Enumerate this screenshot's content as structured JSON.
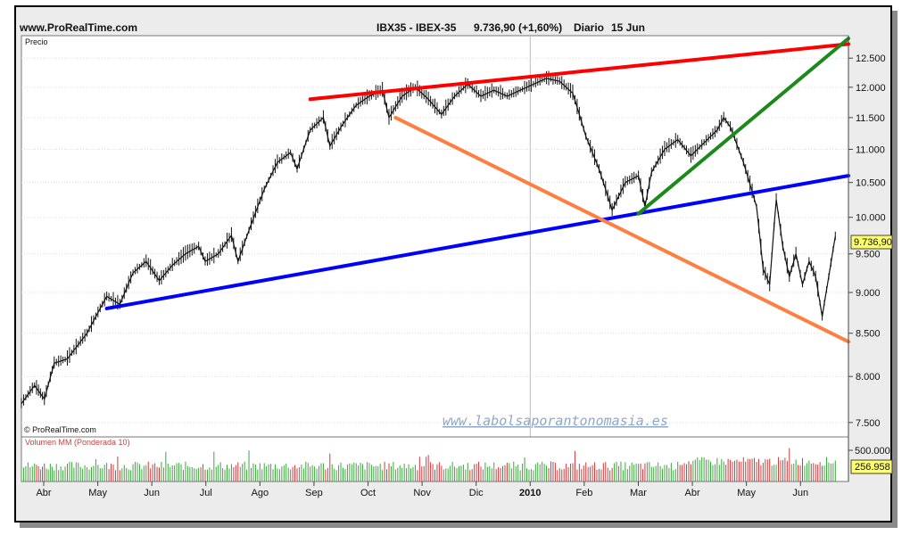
{
  "header": {
    "site": "www.ProRealTime.com",
    "symbol": "IBX35 - IBEX-35",
    "quote": "9.736,90 (+1,60%)",
    "period": "Diario",
    "date": "15 Jun"
  },
  "price_panel": {
    "label": "Precio",
    "copyright": "© ProRealTime.com",
    "watermark": "www.labolsaporantonomasia.es",
    "last_value_label": "9.736,90"
  },
  "volume_panel": {
    "label": "Volumen MM (Ponderada 10)",
    "axis_label": "500.000",
    "last_value_label": "256.958"
  },
  "colors": {
    "up_volume": "#3aa83a",
    "down_volume": "#d03a3a",
    "resistance": "#ff0000",
    "support": "#0000ff",
    "down_channel": "#ff7f40",
    "rebound": "#1a8a1a",
    "badge": "#ffff66"
  },
  "chart_data": {
    "type": "line",
    "title": "IBX35 - IBEX-35",
    "ylabel": "Precio",
    "y_scale": "log",
    "ylim": [
      7350,
      12900
    ],
    "grid": true,
    "y_ticks": [
      7500,
      8000,
      8500,
      9000,
      9500,
      10000,
      10500,
      11000,
      11500,
      12000,
      12500
    ],
    "y_tick_labels": [
      "7.500",
      "8.000",
      "8.500",
      "9.000",
      "9.500",
      "10.000",
      "10.500",
      "11.000",
      "11.500",
      "12.000",
      "12.500"
    ],
    "x_labels": [
      "Abr",
      "May",
      "Jun",
      "Jul",
      "Ago",
      "Sep",
      "Oct",
      "Nov",
      "Dic",
      "2010",
      "Feb",
      "Mar",
      "Abr",
      "May",
      "Jun"
    ],
    "series": [
      {
        "values": [
          [
            0,
            7700
          ],
          [
            2,
            7900
          ],
          [
            3.5,
            7750
          ],
          [
            5,
            8150
          ],
          [
            7,
            8200
          ],
          [
            10,
            8500
          ],
          [
            13,
            8950
          ],
          [
            15,
            8850
          ],
          [
            17,
            9250
          ],
          [
            19,
            9400
          ],
          [
            21,
            9150
          ],
          [
            23,
            9350
          ],
          [
            25,
            9500
          ],
          [
            27,
            9600
          ],
          [
            28,
            9400
          ],
          [
            30,
            9500
          ],
          [
            32,
            9750
          ],
          [
            33,
            9400
          ],
          [
            35,
            9900
          ],
          [
            37,
            10400
          ],
          [
            39,
            10800
          ],
          [
            41,
            10950
          ],
          [
            42,
            10700
          ],
          [
            44,
            11300
          ],
          [
            46,
            11500
          ],
          [
            47,
            11050
          ],
          [
            49,
            11400
          ],
          [
            51,
            11700
          ],
          [
            53,
            11850
          ],
          [
            55,
            11950
          ],
          [
            56,
            11500
          ],
          [
            58,
            11850
          ],
          [
            60,
            12000
          ],
          [
            62,
            11800
          ],
          [
            64,
            11550
          ],
          [
            66,
            11850
          ],
          [
            68,
            12050
          ],
          [
            70,
            11850
          ],
          [
            72,
            11950
          ],
          [
            74,
            11850
          ],
          [
            76,
            11950
          ],
          [
            78,
            12050
          ],
          [
            80,
            12150
          ],
          [
            82,
            12100
          ],
          [
            84,
            11900
          ],
          [
            86,
            11200
          ],
          [
            88,
            10700
          ],
          [
            90,
            10100
          ],
          [
            92,
            10500
          ],
          [
            94,
            10600
          ],
          [
            95,
            10150
          ],
          [
            96,
            10650
          ],
          [
            98,
            11000
          ],
          [
            100,
            11150
          ],
          [
            102,
            10900
          ],
          [
            104,
            11100
          ],
          [
            106,
            11300
          ],
          [
            107,
            11500
          ],
          [
            108,
            11350
          ],
          [
            110,
            10800
          ],
          [
            112,
            10150
          ],
          [
            113,
            9300
          ],
          [
            114,
            9100
          ],
          [
            115,
            10250
          ],
          [
            116,
            9600
          ],
          [
            117,
            9200
          ],
          [
            118,
            9500
          ],
          [
            119,
            9100
          ],
          [
            120,
            9400
          ],
          [
            121,
            9200
          ],
          [
            122,
            8700
          ],
          [
            123,
            9200
          ],
          [
            124,
            9737
          ]
        ]
      }
    ],
    "annotations": [
      {
        "name": "resistance",
        "color": "#ff0000",
        "from": [
          44,
          11800
        ],
        "to": [
          126,
          12750
        ]
      },
      {
        "name": "support",
        "color": "#0000ff",
        "from": [
          13,
          8800
        ],
        "to": [
          126,
          10600
        ]
      },
      {
        "name": "down-channel",
        "color": "#ff7f40",
        "from": [
          57,
          11500
        ],
        "to": [
          126,
          8400
        ]
      },
      {
        "name": "rebound",
        "color": "#1a8a1a",
        "from": [
          94,
          10050
        ],
        "to": [
          126,
          12850
        ]
      }
    ],
    "volume": {
      "label": "Volumen MM (Ponderada 10)",
      "ylim": [
        0,
        600000
      ],
      "y_ticks": [
        500000
      ],
      "last": 256958
    }
  }
}
